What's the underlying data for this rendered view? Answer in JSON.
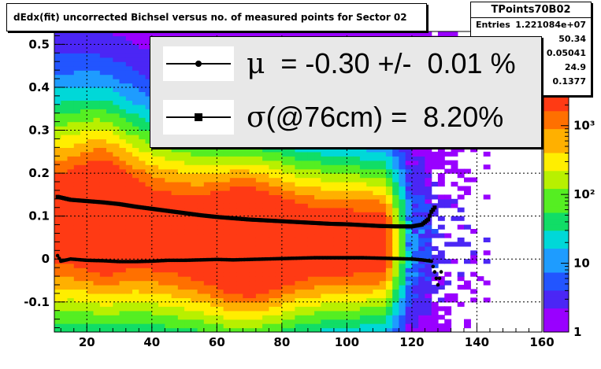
{
  "title": "dEdx(fit) uncorrected Bichsel versus no. of measured points for Sector 02",
  "stats": {
    "name": "TPoints70B02",
    "rows": [
      {
        "key": "Entries",
        "value": "1.221084e+07"
      },
      {
        "key": "",
        "value": "50.34"
      },
      {
        "key": "",
        "value": "0.05041"
      },
      {
        "key": "",
        "value": "24.9"
      },
      {
        "key": "",
        "value": "0.1377"
      }
    ]
  },
  "legend": {
    "mu_symbol": "μ",
    "mu_text": "  = -0.30 +/-  0.01 %",
    "sigma_symbol": "σ",
    "sigma_text": "(@76cm) =  8.20%"
  },
  "colors": {
    "frame": "#000000",
    "markers": "#000000",
    "palette": [
      "#9900ff",
      "#4b26f5",
      "#2255ff",
      "#1e9cff",
      "#00d8d8",
      "#11dd66",
      "#55ee22",
      "#b8f000",
      "#ffee00",
      "#ffb000",
      "#ff7000",
      "#ff3a14"
    ]
  },
  "chart_data": {
    "type": "heatmap",
    "title": "dEdx(fit) uncorrected Bichsel versus no. of measured points for Sector 02",
    "xlabel": "",
    "ylabel": "",
    "xlim": [
      10,
      160
    ],
    "ylim": [
      -0.17,
      0.53
    ],
    "x_ticks": [
      20,
      40,
      60,
      80,
      100,
      120,
      140,
      160
    ],
    "y_ticks": [
      -0.1,
      0,
      0.1,
      0.2,
      0.3,
      0.4,
      0.5
    ],
    "z_scale": "log",
    "z_range": [
      1,
      3000
    ],
    "z_ticks": [
      "1",
      "10",
      "10²",
      "10³"
    ],
    "grid": true,
    "series": [
      {
        "marker": "circle",
        "x": [
          11,
          12,
          15,
          20,
          25,
          30,
          35,
          40,
          45,
          50,
          55,
          60,
          65,
          70,
          75,
          80,
          85,
          90,
          95,
          100,
          105,
          110,
          115,
          120,
          123,
          126,
          127,
          128,
          129
        ],
        "y": [
          0.008,
          -0.005,
          0.0,
          -0.003,
          -0.004,
          -0.006,
          -0.006,
          -0.005,
          -0.003,
          -0.003,
          -0.002,
          -0.001,
          -0.002,
          -0.001,
          0.0,
          0.001,
          0.002,
          0.003,
          0.003,
          0.003,
          0.003,
          0.002,
          0.001,
          0.0,
          -0.002,
          -0.005,
          -0.03,
          -0.06,
          -0.03
        ]
      },
      {
        "marker": "square",
        "x": [
          11,
          15,
          20,
          25,
          30,
          35,
          40,
          45,
          50,
          55,
          60,
          65,
          70,
          75,
          80,
          85,
          90,
          95,
          100,
          105,
          110,
          115,
          120,
          123,
          125,
          126,
          127
        ],
        "y": [
          0.145,
          0.138,
          0.135,
          0.132,
          0.128,
          0.122,
          0.117,
          0.112,
          0.107,
          0.102,
          0.098,
          0.095,
          0.092,
          0.09,
          0.088,
          0.086,
          0.084,
          0.082,
          0.081,
          0.079,
          0.077,
          0.076,
          0.076,
          0.08,
          0.092,
          0.11,
          0.12
        ]
      }
    ]
  }
}
